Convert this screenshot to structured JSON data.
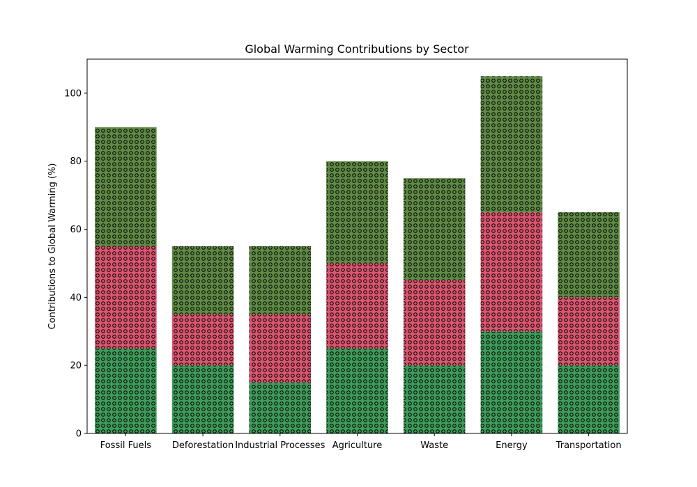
{
  "chart_data": {
    "type": "bar",
    "stacked": true,
    "title": "Global Warming Contributions by Sector",
    "xlabel": "",
    "ylabel": "Contributions to Global Warming (%)",
    "categories": [
      "Fossil Fuels",
      "Deforestation",
      "Industrial Processes",
      "Agriculture",
      "Waste",
      "Energy",
      "Transportation"
    ],
    "series": [
      {
        "color": "#3f9b5a",
        "values": [
          25,
          20,
          15,
          25,
          20,
          30,
          20
        ]
      },
      {
        "color": "#d9566f",
        "values": [
          30,
          15,
          20,
          25,
          25,
          35,
          20
        ]
      },
      {
        "color": "#5f8a45",
        "values": [
          35,
          20,
          20,
          30,
          30,
          40,
          25
        ]
      }
    ],
    "ylim": [
      0,
      110
    ],
    "yticks": [
      0,
      20,
      40,
      60,
      80,
      100
    ],
    "hatch": "small-circles",
    "grid": false,
    "legend": "none"
  }
}
